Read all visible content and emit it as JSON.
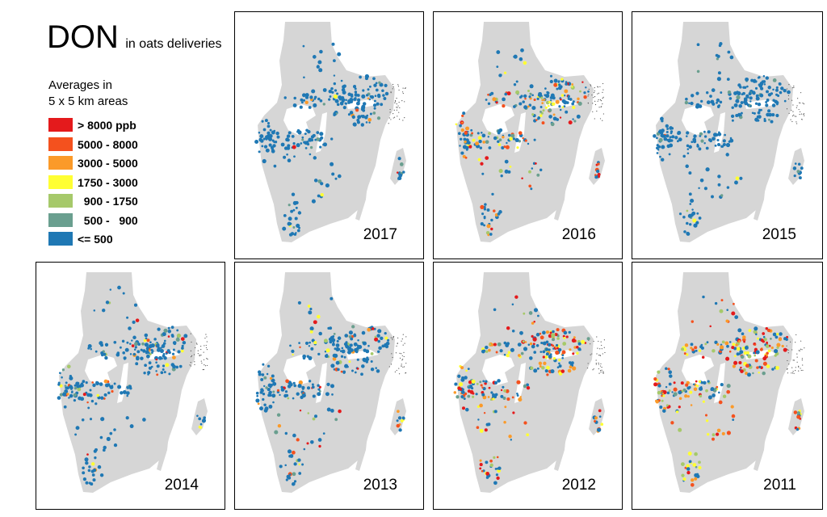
{
  "title": {
    "main": "DON",
    "sub": "in oats deliveries"
  },
  "legend": {
    "heading_line1": "Averages in",
    "heading_line2": "5 x 5 km areas",
    "items": [
      {
        "label": "> 8000 ppb",
        "color": "#e41a1c"
      },
      {
        "label": "5000 - 8000",
        "color": "#f4511e"
      },
      {
        "label": "3000 - 5000",
        "color": "#fb9a29"
      },
      {
        "label": "1750 - 3000",
        "color": "#ffff33"
      },
      {
        "label": "  900 - 1750",
        "color": "#a6c96a"
      },
      {
        "label": "  500 -   900",
        "color": "#6a9f8f"
      },
      {
        "label": "<= 500",
        "color": "#1f78b4"
      }
    ]
  },
  "colors": {
    "land": "#d6d6d6",
    "coast": "#555555"
  },
  "panels": [
    {
      "year": "2017",
      "risk": 0.02
    },
    {
      "year": "2016",
      "risk": 0.35
    },
    {
      "year": "2015",
      "risk": 0.01
    },
    {
      "year": "2014",
      "risk": 0.12
    },
    {
      "year": "2013",
      "risk": 0.18
    },
    {
      "year": "2012",
      "risk": 0.55
    },
    {
      "year": "2011",
      "risk": 0.65
    }
  ]
}
